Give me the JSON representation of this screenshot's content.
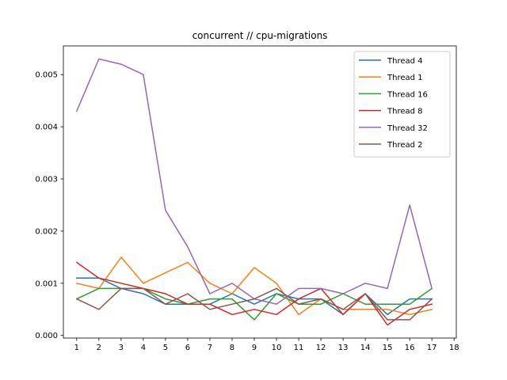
{
  "chart_data": {
    "type": "line",
    "title": "concurrent // cpu-migrations",
    "xlabel": "",
    "ylabel": "",
    "x": [
      1,
      2,
      3,
      4,
      5,
      6,
      7,
      8,
      9,
      10,
      11,
      12,
      13,
      14,
      15,
      16,
      17
    ],
    "xticks": [
      "1",
      "2",
      "3",
      "4",
      "5",
      "6",
      "7",
      "8",
      "9",
      "10",
      "11",
      "12",
      "13",
      "14",
      "15",
      "16",
      "17",
      "18"
    ],
    "yticks": [
      "0.000",
      "0.001",
      "0.002",
      "0.003",
      "0.004",
      "0.005"
    ],
    "xlim": [
      0.4,
      18.1
    ],
    "ylim": [
      -5e-05,
      0.00555
    ],
    "grid": false,
    "legend_position": "top-right",
    "series": [
      {
        "name": "Thread 4",
        "color": "#1f77b4",
        "values": [
          0.0011,
          0.0011,
          0.0009,
          0.0008,
          0.0006,
          0.0006,
          0.0006,
          0.0008,
          0.0006,
          0.0008,
          0.0007,
          0.0007,
          0.0004,
          0.0008,
          0.0004,
          0.0007,
          0.0007
        ]
      },
      {
        "name": "Thread 1",
        "color": "#ff7f0e",
        "values": [
          0.001,
          0.0009,
          0.0015,
          0.001,
          0.0012,
          0.0014,
          0.001,
          0.0008,
          0.0013,
          0.001,
          0.0004,
          0.0007,
          0.0005,
          0.0005,
          0.0005,
          0.0004,
          0.0005
        ]
      },
      {
        "name": "Thread 16",
        "color": "#2ca02c",
        "values": [
          0.0007,
          0.0009,
          0.0009,
          0.0009,
          0.0007,
          0.0006,
          0.0007,
          0.0007,
          0.0003,
          0.0008,
          0.0006,
          0.0006,
          0.0008,
          0.0006,
          0.0006,
          0.0006,
          0.0009
        ]
      },
      {
        "name": "Thread 8",
        "color": "#d62728",
        "values": [
          0.0014,
          0.0011,
          0.001,
          0.0009,
          0.0008,
          0.0006,
          0.0006,
          0.0004,
          0.0005,
          0.0004,
          0.0007,
          0.0009,
          0.0004,
          0.0008,
          0.0002,
          0.0005,
          0.0006
        ]
      },
      {
        "name": "Thread 32",
        "color": "#9467bd",
        "values": [
          0.0043,
          0.0053,
          0.0052,
          0.005,
          0.0024,
          0.0017,
          0.0008,
          0.001,
          0.0007,
          0.0006,
          0.0009,
          0.0009,
          0.0008,
          0.001,
          0.0009,
          0.0025,
          0.0009
        ]
      },
      {
        "name": "Thread 2",
        "color": "#8c564b",
        "values": [
          0.0007,
          0.0005,
          0.0009,
          0.0009,
          0.0006,
          0.0008,
          0.0005,
          0.0006,
          0.0007,
          0.0009,
          0.0006,
          0.0007,
          0.0005,
          0.0008,
          0.0003,
          0.0003,
          0.0007
        ]
      }
    ]
  }
}
